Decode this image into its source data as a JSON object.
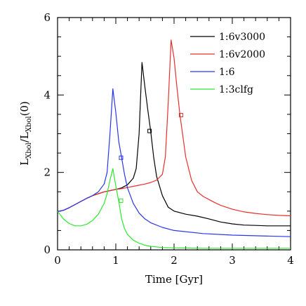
{
  "chart_data": {
    "type": "line",
    "xlabel": "Time [Gyr]",
    "ylabel": {
      "part1": "L",
      "sub1": "Xbol",
      "part2": "/L",
      "sub2": "Xbol",
      "part3": "(0)"
    },
    "xlim": [
      0,
      4
    ],
    "ylim": [
      0,
      6
    ],
    "x_ticks": [
      0,
      1,
      2,
      3,
      4
    ],
    "y_ticks": [
      0,
      2,
      4,
      6
    ],
    "x_tick_labels": [
      "0",
      "1",
      "2",
      "3",
      "4"
    ],
    "y_tick_labels": [
      "0",
      "2",
      "4",
      "6"
    ],
    "legend_position": "top-right",
    "series": [
      {
        "name": "1:6v3000",
        "color": "#000000",
        "x": [
          0.0,
          0.1,
          0.2,
          0.3,
          0.4,
          0.5,
          0.6,
          0.7,
          0.8,
          0.9,
          1.0,
          1.1,
          1.2,
          1.3,
          1.35,
          1.4,
          1.45,
          1.5,
          1.55,
          1.6,
          1.65,
          1.7,
          1.8,
          1.9,
          2.0,
          2.2,
          2.4,
          2.6,
          2.8,
          3.0,
          3.2,
          3.4,
          3.6,
          3.8,
          4.0
        ],
        "y": [
          0.99,
          1.02,
          1.09,
          1.17,
          1.25,
          1.33,
          1.4,
          1.45,
          1.5,
          1.53,
          1.56,
          1.6,
          1.68,
          1.85,
          2.1,
          3.0,
          4.84,
          4.2,
          3.6,
          3.05,
          2.4,
          1.9,
          1.4,
          1.1,
          1.0,
          0.92,
          0.87,
          0.8,
          0.72,
          0.67,
          0.64,
          0.63,
          0.62,
          0.62,
          0.62
        ]
      },
      {
        "name": "1:6v2000",
        "color": "#e8302b",
        "x": [
          0.0,
          0.1,
          0.2,
          0.3,
          0.4,
          0.5,
          0.6,
          0.7,
          0.8,
          0.9,
          1.0,
          1.1,
          1.2,
          1.3,
          1.4,
          1.5,
          1.6,
          1.7,
          1.8,
          1.85,
          1.9,
          1.95,
          2.0,
          2.05,
          2.1,
          2.2,
          2.3,
          2.4,
          2.5,
          2.6,
          2.7,
          2.8,
          3.0,
          3.2,
          3.4,
          3.6,
          3.8,
          4.0
        ],
        "y": [
          0.99,
          1.02,
          1.09,
          1.17,
          1.25,
          1.33,
          1.4,
          1.45,
          1.5,
          1.53,
          1.56,
          1.58,
          1.61,
          1.64,
          1.67,
          1.7,
          1.74,
          1.8,
          1.95,
          2.4,
          3.8,
          5.42,
          4.95,
          4.2,
          3.5,
          2.4,
          1.8,
          1.5,
          1.38,
          1.3,
          1.22,
          1.15,
          1.05,
          0.98,
          0.94,
          0.91,
          0.89,
          0.88
        ]
      },
      {
        "name": "1:6",
        "color": "#2a35e8",
        "x": [
          0.0,
          0.1,
          0.2,
          0.3,
          0.4,
          0.5,
          0.6,
          0.7,
          0.8,
          0.85,
          0.9,
          0.95,
          1.0,
          1.05,
          1.1,
          1.15,
          1.2,
          1.3,
          1.4,
          1.5,
          1.6,
          1.8,
          2.0,
          2.5,
          3.0,
          3.5,
          4.0
        ],
        "y": [
          0.99,
          1.02,
          1.09,
          1.17,
          1.25,
          1.33,
          1.4,
          1.5,
          1.7,
          2.0,
          3.0,
          4.16,
          3.55,
          2.8,
          2.38,
          1.95,
          1.6,
          1.2,
          0.95,
          0.8,
          0.7,
          0.58,
          0.5,
          0.42,
          0.38,
          0.36,
          0.34
        ]
      },
      {
        "name": "1:3clfg",
        "color": "#2ee82e",
        "x": [
          0.0,
          0.05,
          0.1,
          0.2,
          0.3,
          0.4,
          0.5,
          0.6,
          0.7,
          0.8,
          0.85,
          0.9,
          0.95,
          1.0,
          1.05,
          1.1,
          1.15,
          1.2,
          1.3,
          1.4,
          1.5,
          1.6,
          1.8,
          2.0,
          2.5,
          3.0,
          3.5,
          4.0
        ],
        "y": [
          0.99,
          0.9,
          0.8,
          0.68,
          0.62,
          0.62,
          0.66,
          0.76,
          0.92,
          1.2,
          1.45,
          1.8,
          2.1,
          1.65,
          1.25,
          0.8,
          0.55,
          0.4,
          0.25,
          0.17,
          0.12,
          0.09,
          0.06,
          0.05,
          0.04,
          0.04,
          0.04,
          0.04
        ]
      }
    ],
    "markers": [
      {
        "series": "1:6v3000",
        "x": 1.58,
        "y": 3.07
      },
      {
        "series": "1:6v2000",
        "x": 2.12,
        "y": 3.48
      },
      {
        "series": "1:6",
        "x": 1.09,
        "y": 2.38
      },
      {
        "series": "1:3clfg",
        "x": 1.09,
        "y": 1.27
      }
    ]
  }
}
